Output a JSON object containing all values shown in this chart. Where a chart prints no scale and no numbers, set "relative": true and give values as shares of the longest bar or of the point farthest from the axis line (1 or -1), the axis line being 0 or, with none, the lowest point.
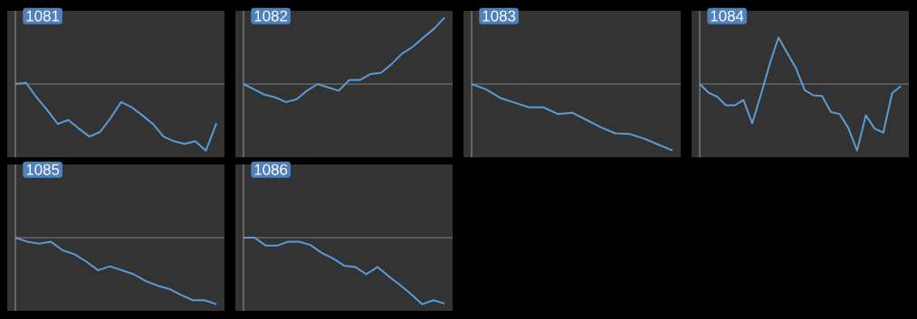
{
  "chart_data": [
    {
      "type": "line",
      "title": "1081",
      "relative": true,
      "color": "#5b9bd5",
      "ref_lines": [
        {
          "axis": "y",
          "value": 0,
          "color": "#7f7f7f"
        }
      ],
      "categories": [
        null,
        null,
        null,
        null,
        null,
        null,
        null,
        null,
        null,
        null,
        null,
        null,
        null,
        null,
        null,
        null,
        null,
        null,
        null,
        null
      ],
      "values": [
        0,
        0.02,
        -0.2,
        -0.39,
        -0.6,
        -0.54,
        -0.67,
        -0.79,
        -0.72,
        -0.51,
        -0.27,
        -0.35,
        -0.47,
        -0.6,
        -0.79,
        -0.86,
        -0.9,
        -0.86,
        -1.0,
        -0.59
      ]
    },
    {
      "type": "line",
      "title": "1082",
      "relative": true,
      "color": "#5b9bd5",
      "ref_lines": [
        {
          "axis": "y",
          "value": 0,
          "color": "#7f7f7f"
        }
      ],
      "categories": [
        null,
        null,
        null,
        null,
        null,
        null,
        null,
        null,
        null,
        null,
        null,
        null,
        null,
        null,
        null,
        null,
        null,
        null,
        null,
        null
      ],
      "values": [
        0,
        -0.08,
        -0.16,
        -0.2,
        -0.27,
        -0.23,
        -0.1,
        0.0,
        -0.05,
        -0.1,
        0.06,
        0.06,
        0.15,
        0.17,
        0.3,
        0.46,
        0.56,
        0.7,
        0.83,
        1.0
      ]
    },
    {
      "type": "line",
      "title": "1083",
      "relative": true,
      "color": "#5b9bd5",
      "ref_lines": [
        {
          "axis": "y",
          "value": 0,
          "color": "#7f7f7f"
        }
      ],
      "categories": [
        null,
        null,
        null,
        null,
        null,
        null,
        null,
        null,
        null,
        null,
        null,
        null,
        null,
        null,
        null
      ],
      "values": [
        0,
        -0.08,
        -0.21,
        -0.28,
        -0.35,
        -0.35,
        -0.45,
        -0.43,
        -0.54,
        -0.65,
        -0.74,
        -0.75,
        -0.82,
        -0.91,
        -1.0
      ]
    },
    {
      "type": "line",
      "title": "1084",
      "relative": true,
      "color": "#5b9bd5",
      "ref_lines": [
        {
          "axis": "y",
          "value": 0,
          "color": "#7f7f7f"
        }
      ],
      "categories": [
        null,
        null,
        null,
        null,
        null,
        null,
        null,
        null,
        null,
        null,
        null,
        null,
        null,
        null,
        null,
        null,
        null,
        null,
        null,
        null,
        null,
        null,
        null,
        null
      ],
      "values": [
        0,
        -0.13,
        -0.19,
        -0.32,
        -0.32,
        -0.24,
        -0.59,
        -0.16,
        0.3,
        0.7,
        0.47,
        0.24,
        -0.09,
        -0.17,
        -0.18,
        -0.42,
        -0.45,
        -0.66,
        -1.0,
        -0.47,
        -0.67,
        -0.73,
        -0.14,
        -0.03
      ]
    },
    {
      "type": "line",
      "title": "1085",
      "relative": true,
      "color": "#5b9bd5",
      "ref_lines": [
        {
          "axis": "y",
          "value": 0,
          "color": "#7f7f7f"
        }
      ],
      "categories": [
        null,
        null,
        null,
        null,
        null,
        null,
        null,
        null,
        null,
        null,
        null,
        null,
        null,
        null,
        null,
        null,
        null,
        null
      ],
      "values": [
        0,
        -0.06,
        -0.09,
        -0.06,
        -0.19,
        -0.25,
        -0.36,
        -0.49,
        -0.43,
        -0.49,
        -0.55,
        -0.65,
        -0.72,
        -0.77,
        -0.86,
        -0.94,
        -0.94,
        -1.0
      ]
    },
    {
      "type": "line",
      "title": "1086",
      "relative": true,
      "color": "#5b9bd5",
      "ref_lines": [
        {
          "axis": "y",
          "value": 0,
          "color": "#7f7f7f"
        }
      ],
      "categories": [
        null,
        null,
        null,
        null,
        null,
        null,
        null,
        null,
        null,
        null,
        null,
        null,
        null,
        null,
        null,
        null,
        null,
        null,
        null
      ],
      "values": [
        0,
        0,
        -0.12,
        -0.12,
        -0.06,
        -0.06,
        -0.11,
        -0.23,
        -0.31,
        -0.42,
        -0.44,
        -0.55,
        -0.44,
        -0.58,
        -0.71,
        -0.85,
        -1.0,
        -0.94,
        -0.99
      ]
    }
  ]
}
